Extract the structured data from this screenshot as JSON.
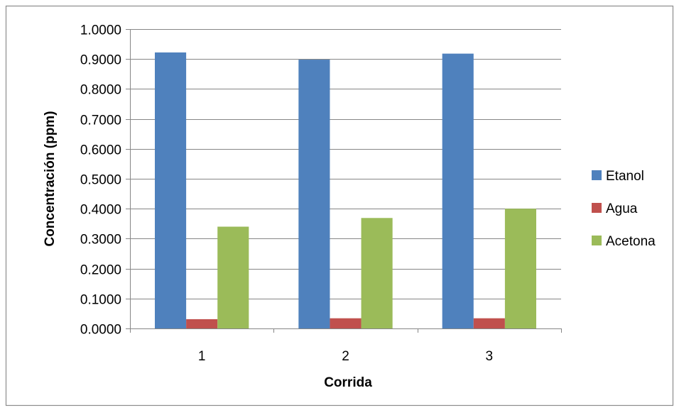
{
  "chart_data": {
    "type": "bar",
    "title": "",
    "xlabel": "Corrida",
    "ylabel": "Concentración (ppm)",
    "categories": [
      "1",
      "2",
      "3"
    ],
    "ylim": [
      0,
      1.0
    ],
    "yticks": [
      0.0,
      0.1,
      0.2,
      0.3,
      0.4,
      0.5,
      0.6,
      0.7,
      0.8,
      0.9,
      1.0
    ],
    "ytick_labels": [
      "0.0000",
      "0.1000",
      "0.2000",
      "0.3000",
      "0.4000",
      "0.5000",
      "0.6000",
      "0.7000",
      "0.8000",
      "0.9000",
      "1.0000"
    ],
    "grid": true,
    "legend_position": "right",
    "series": [
      {
        "name": "Etanol",
        "color": "#4F81BD",
        "values": [
          0.922,
          0.898,
          0.918
        ]
      },
      {
        "name": "Agua",
        "color": "#C0504D",
        "values": [
          0.031,
          0.034,
          0.034
        ]
      },
      {
        "name": "Acetona",
        "color": "#9BBB59",
        "values": [
          0.34,
          0.369,
          0.4
        ]
      }
    ]
  }
}
